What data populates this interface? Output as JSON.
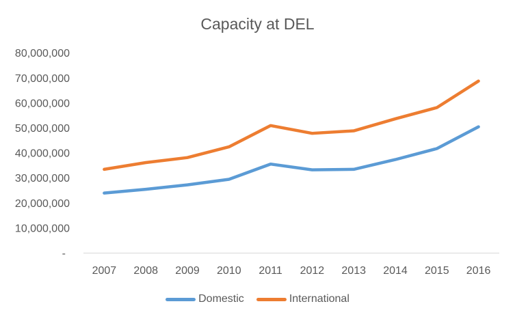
{
  "chart_data": {
    "type": "line",
    "title": "Capacity at DEL",
    "categories": [
      "2007",
      "2008",
      "2009",
      "2010",
      "2011",
      "2012",
      "2013",
      "2014",
      "2015",
      "2016"
    ],
    "series": [
      {
        "name": "Domestic",
        "color": "#5B9BD5",
        "values": [
          24000000,
          25500000,
          27300000,
          29500000,
          35600000,
          33300000,
          33500000,
          37400000,
          41800000,
          50500000
        ]
      },
      {
        "name": "International",
        "color": "#ED7D31",
        "values": [
          33500000,
          36200000,
          38200000,
          42500000,
          51000000,
          47900000,
          48900000,
          53700000,
          58200000,
          68800000
        ]
      }
    ],
    "y_axis": {
      "min": 0,
      "max": 80000000,
      "tick_interval": 10000000,
      "tick_labels": [
        "-",
        "10,000,000",
        "20,000,000",
        "30,000,000",
        "40,000,000",
        "50,000,000",
        "60,000,000",
        "70,000,000",
        "80,000,000"
      ]
    },
    "grid": "off",
    "legend_position": "bottom",
    "text_color": "#595959",
    "axis_line_color": "#D9D9D9"
  }
}
